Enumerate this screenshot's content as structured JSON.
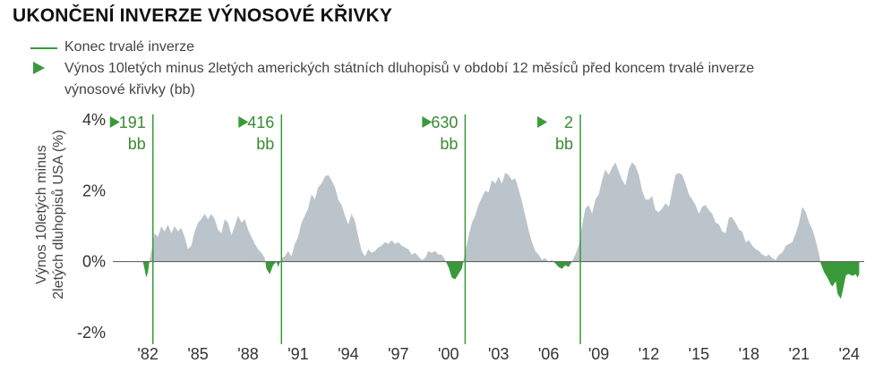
{
  "title": "UKONČENÍ INVERZE VÝNOSOVÉ KŘIVKY",
  "legend": {
    "line_label": "Konec trvalé inverze",
    "triangle_label_1": "Výnos 10letých minus 2letých amerických státních dluhopisů v období 12 měsíců před koncem trvalé inverze",
    "triangle_label_2": "výnosové křivky (bb)",
    "line_color": "#3a9a3a"
  },
  "ylabel": [
    "Výnos 10letých minus",
    "2letých dluhopisů USA (%)"
  ],
  "colors": {
    "positive": "#bcc4cb",
    "negative": "#3a9a3a",
    "axis": "#555555",
    "annot": "#3a8a32"
  },
  "chart_data": {
    "type": "area",
    "ylim": [
      -2,
      4
    ],
    "xlim": [
      1979.9,
      2024.9
    ],
    "y_ticks": [
      {
        "value": 4,
        "label": "4%"
      },
      {
        "value": 2,
        "label": "2%"
      },
      {
        "value": 0,
        "label": "0%"
      },
      {
        "value": -2,
        "label": "-2%"
      }
    ],
    "x_ticks": [
      {
        "value": 1982,
        "label": "'82"
      },
      {
        "value": 1985,
        "label": "'85"
      },
      {
        "value": 1988,
        "label": "'88"
      },
      {
        "value": 1991,
        "label": "'91"
      },
      {
        "value": 1994,
        "label": "'94"
      },
      {
        "value": 1997,
        "label": "'97"
      },
      {
        "value": 2000,
        "label": "'00"
      },
      {
        "value": 2003,
        "label": "'03"
      },
      {
        "value": 2006,
        "label": "'06"
      },
      {
        "value": 2009,
        "label": "'09"
      },
      {
        "value": 2012,
        "label": "'12"
      },
      {
        "value": 2015,
        "label": "'15"
      },
      {
        "value": 2018,
        "label": "'18"
      },
      {
        "value": 2021,
        "label": "'21"
      },
      {
        "value": 2024,
        "label": "'24"
      }
    ],
    "inversion_ends": [
      {
        "x": 1982.3,
        "value": "191",
        "unit": "bb"
      },
      {
        "x": 1990.0,
        "value": "416",
        "unit": "bb"
      },
      {
        "x": 2001.0,
        "value": "630",
        "unit": "bb"
      },
      {
        "x": 2007.9,
        "value": "2",
        "unit": "bb"
      }
    ],
    "series": [
      {
        "values": [
          [
            1981.7,
            0.0
          ],
          [
            1981.8,
            -0.2
          ],
          [
            1981.9,
            -0.45
          ],
          [
            1982.0,
            -0.3
          ],
          [
            1982.1,
            0.05
          ],
          [
            1982.3,
            0.5
          ],
          [
            1982.4,
            0.8
          ],
          [
            1982.6,
            0.7
          ],
          [
            1982.8,
            1.0
          ],
          [
            1983.0,
            0.85
          ],
          [
            1983.2,
            1.05
          ],
          [
            1983.4,
            0.8
          ],
          [
            1983.6,
            1.0
          ],
          [
            1983.8,
            0.85
          ],
          [
            1984.0,
            0.95
          ],
          [
            1984.2,
            0.7
          ],
          [
            1984.4,
            0.35
          ],
          [
            1984.6,
            0.45
          ],
          [
            1984.8,
            0.85
          ],
          [
            1985.0,
            1.1
          ],
          [
            1985.2,
            1.2
          ],
          [
            1985.4,
            1.35
          ],
          [
            1985.6,
            1.2
          ],
          [
            1985.8,
            1.35
          ],
          [
            1986.0,
            1.2
          ],
          [
            1986.2,
            0.9
          ],
          [
            1986.4,
            0.8
          ],
          [
            1986.6,
            1.2
          ],
          [
            1986.8,
            1.1
          ],
          [
            1987.0,
            0.75
          ],
          [
            1987.2,
            1.0
          ],
          [
            1987.4,
            1.3
          ],
          [
            1987.6,
            1.1
          ],
          [
            1987.8,
            1.2
          ],
          [
            1988.0,
            0.9
          ],
          [
            1988.2,
            0.7
          ],
          [
            1988.4,
            0.5
          ],
          [
            1988.6,
            0.35
          ],
          [
            1988.8,
            0.25
          ],
          [
            1989.0,
            0.1
          ],
          [
            1989.1,
            -0.2
          ],
          [
            1989.3,
            -0.35
          ],
          [
            1989.5,
            -0.1
          ],
          [
            1989.7,
            0.0
          ],
          [
            1989.8,
            -0.15
          ],
          [
            1990.0,
            0.1
          ],
          [
            1990.2,
            0.15
          ],
          [
            1990.4,
            0.3
          ],
          [
            1990.6,
            0.15
          ],
          [
            1990.8,
            0.5
          ],
          [
            1991.0,
            0.7
          ],
          [
            1991.2,
            1.1
          ],
          [
            1991.4,
            1.3
          ],
          [
            1991.6,
            1.5
          ],
          [
            1991.8,
            1.9
          ],
          [
            1992.0,
            1.75
          ],
          [
            1992.2,
            2.1
          ],
          [
            1992.4,
            2.2
          ],
          [
            1992.6,
            2.4
          ],
          [
            1992.8,
            2.45
          ],
          [
            1993.0,
            2.3
          ],
          [
            1993.2,
            2.1
          ],
          [
            1993.4,
            1.75
          ],
          [
            1993.6,
            1.6
          ],
          [
            1993.8,
            1.3
          ],
          [
            1994.0,
            1.05
          ],
          [
            1994.2,
            1.35
          ],
          [
            1994.4,
            1.15
          ],
          [
            1994.6,
            0.7
          ],
          [
            1994.8,
            0.3
          ],
          [
            1995.0,
            0.15
          ],
          [
            1995.2,
            0.35
          ],
          [
            1995.4,
            0.25
          ],
          [
            1995.6,
            0.3
          ],
          [
            1995.8,
            0.4
          ],
          [
            1996.0,
            0.45
          ],
          [
            1996.2,
            0.55
          ],
          [
            1996.4,
            0.5
          ],
          [
            1996.6,
            0.6
          ],
          [
            1996.8,
            0.5
          ],
          [
            1997.0,
            0.55
          ],
          [
            1997.2,
            0.45
          ],
          [
            1997.4,
            0.4
          ],
          [
            1997.6,
            0.35
          ],
          [
            1997.8,
            0.2
          ],
          [
            1998.0,
            0.25
          ],
          [
            1998.2,
            0.15
          ],
          [
            1998.4,
            0.05
          ],
          [
            1998.6,
            0.1
          ],
          [
            1998.8,
            0.3
          ],
          [
            1999.0,
            0.25
          ],
          [
            1999.2,
            0.3
          ],
          [
            1999.4,
            0.2
          ],
          [
            1999.6,
            0.2
          ],
          [
            1999.8,
            0.05
          ],
          [
            2000.0,
            -0.15
          ],
          [
            2000.2,
            -0.45
          ],
          [
            2000.4,
            -0.5
          ],
          [
            2000.6,
            -0.35
          ],
          [
            2000.8,
            -0.2
          ],
          [
            2001.0,
            0.25
          ],
          [
            2001.2,
            0.7
          ],
          [
            2001.4,
            1.1
          ],
          [
            2001.6,
            1.3
          ],
          [
            2001.8,
            1.6
          ],
          [
            2002.0,
            1.8
          ],
          [
            2002.2,
            2.0
          ],
          [
            2002.4,
            1.95
          ],
          [
            2002.6,
            2.3
          ],
          [
            2002.8,
            2.2
          ],
          [
            2003.0,
            2.4
          ],
          [
            2003.2,
            2.2
          ],
          [
            2003.4,
            2.5
          ],
          [
            2003.6,
            2.45
          ],
          [
            2003.8,
            2.3
          ],
          [
            2004.0,
            2.35
          ],
          [
            2004.2,
            2.05
          ],
          [
            2004.4,
            1.7
          ],
          [
            2004.6,
            1.3
          ],
          [
            2004.8,
            0.9
          ],
          [
            2005.0,
            0.55
          ],
          [
            2005.2,
            0.3
          ],
          [
            2005.4,
            0.2
          ],
          [
            2005.6,
            0.05
          ],
          [
            2005.8,
            0.1
          ],
          [
            2006.0,
            0.0
          ],
          [
            2006.2,
            0.05
          ],
          [
            2006.4,
            -0.05
          ],
          [
            2006.6,
            -0.15
          ],
          [
            2006.8,
            -0.2
          ],
          [
            2007.0,
            -0.1
          ],
          [
            2007.2,
            -0.15
          ],
          [
            2007.4,
            0.0
          ],
          [
            2007.6,
            0.2
          ],
          [
            2007.8,
            0.45
          ],
          [
            2008.0,
            1.0
          ],
          [
            2008.2,
            1.5
          ],
          [
            2008.4,
            1.6
          ],
          [
            2008.6,
            1.35
          ],
          [
            2008.8,
            1.75
          ],
          [
            2009.0,
            1.9
          ],
          [
            2009.2,
            2.3
          ],
          [
            2009.4,
            2.6
          ],
          [
            2009.6,
            2.45
          ],
          [
            2009.8,
            2.65
          ],
          [
            2010.0,
            2.8
          ],
          [
            2010.2,
            2.55
          ],
          [
            2010.4,
            2.3
          ],
          [
            2010.6,
            2.15
          ],
          [
            2010.8,
            2.6
          ],
          [
            2011.0,
            2.8
          ],
          [
            2011.2,
            2.7
          ],
          [
            2011.4,
            2.45
          ],
          [
            2011.6,
            2.0
          ],
          [
            2011.8,
            1.75
          ],
          [
            2012.0,
            1.75
          ],
          [
            2012.2,
            1.85
          ],
          [
            2012.4,
            1.45
          ],
          [
            2012.6,
            1.4
          ],
          [
            2012.8,
            1.5
          ],
          [
            2013.0,
            1.65
          ],
          [
            2013.2,
            1.55
          ],
          [
            2013.4,
            2.0
          ],
          [
            2013.6,
            2.45
          ],
          [
            2013.8,
            2.5
          ],
          [
            2014.0,
            2.45
          ],
          [
            2014.2,
            2.2
          ],
          [
            2014.4,
            1.9
          ],
          [
            2014.6,
            1.75
          ],
          [
            2014.8,
            1.6
          ],
          [
            2015.0,
            1.35
          ],
          [
            2015.2,
            1.55
          ],
          [
            2015.4,
            1.6
          ],
          [
            2015.6,
            1.45
          ],
          [
            2015.8,
            1.35
          ],
          [
            2016.0,
            1.1
          ],
          [
            2016.2,
            1.05
          ],
          [
            2016.4,
            0.85
          ],
          [
            2016.6,
            0.8
          ],
          [
            2016.8,
            1.25
          ],
          [
            2017.0,
            1.25
          ],
          [
            2017.2,
            1.1
          ],
          [
            2017.4,
            0.9
          ],
          [
            2017.6,
            0.85
          ],
          [
            2017.8,
            0.55
          ],
          [
            2018.0,
            0.6
          ],
          [
            2018.2,
            0.45
          ],
          [
            2018.4,
            0.35
          ],
          [
            2018.6,
            0.3
          ],
          [
            2018.8,
            0.2
          ],
          [
            2019.0,
            0.15
          ],
          [
            2019.2,
            0.2
          ],
          [
            2019.4,
            0.1
          ],
          [
            2019.6,
            0.05
          ],
          [
            2019.8,
            0.2
          ],
          [
            2020.0,
            0.25
          ],
          [
            2020.2,
            0.45
          ],
          [
            2020.4,
            0.5
          ],
          [
            2020.6,
            0.55
          ],
          [
            2020.8,
            0.8
          ],
          [
            2021.0,
            1.1
          ],
          [
            2021.2,
            1.55
          ],
          [
            2021.4,
            1.4
          ],
          [
            2021.6,
            1.1
          ],
          [
            2021.8,
            0.9
          ],
          [
            2022.0,
            0.6
          ],
          [
            2022.2,
            0.2
          ],
          [
            2022.3,
            -0.05
          ],
          [
            2022.5,
            -0.3
          ],
          [
            2022.7,
            -0.45
          ],
          [
            2022.9,
            -0.65
          ],
          [
            2023.0,
            -0.7
          ],
          [
            2023.2,
            -0.55
          ],
          [
            2023.3,
            -0.9
          ],
          [
            2023.5,
            -1.05
          ],
          [
            2023.6,
            -0.85
          ],
          [
            2023.8,
            -0.4
          ],
          [
            2023.9,
            -0.35
          ],
          [
            2024.0,
            -0.35
          ],
          [
            2024.2,
            -0.4
          ],
          [
            2024.4,
            -0.35
          ],
          [
            2024.5,
            -0.45
          ],
          [
            2024.6,
            -0.35
          ]
        ]
      }
    ]
  }
}
